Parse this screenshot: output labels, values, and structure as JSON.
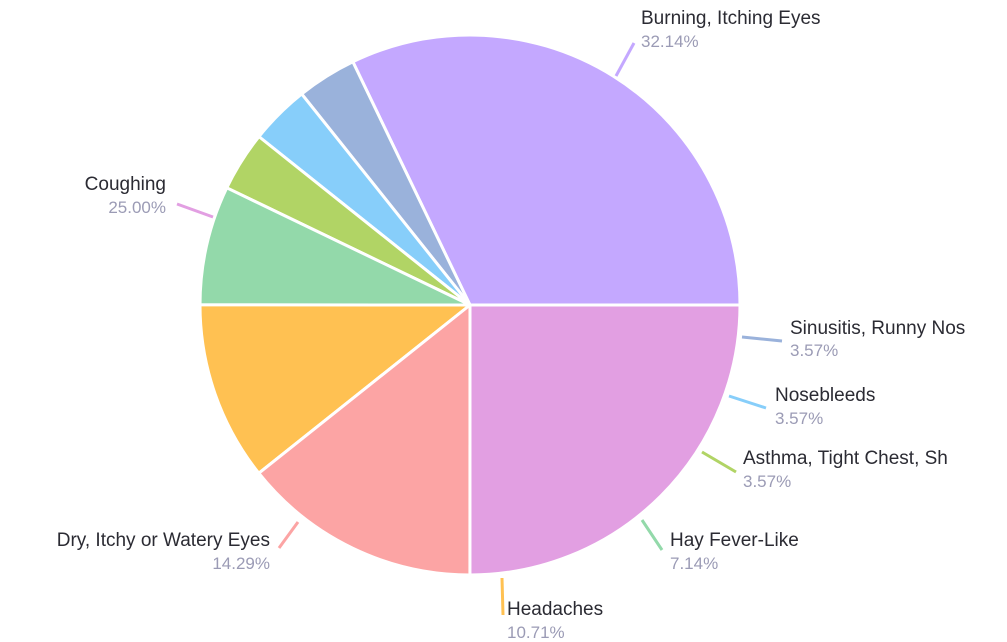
{
  "chart_data": {
    "type": "pie",
    "slices": [
      {
        "label": "Burning, Itching Eyes",
        "pct_label": "32.14%",
        "value": 32.14,
        "color": "#c4a8ff"
      },
      {
        "label": "Sinusitis, Runny Nos",
        "pct_label": "3.57%",
        "value": 3.57,
        "color": "#9ab2db"
      },
      {
        "label": "Nosebleeds",
        "pct_label": "3.57%",
        "value": 3.57,
        "color": "#87cefa"
      },
      {
        "label": "Asthma, Tight Chest, Sh",
        "pct_label": "3.57%",
        "value": 3.57,
        "color": "#b1d465"
      },
      {
        "label": "Hay Fever-Like",
        "pct_label": "7.14%",
        "value": 7.14,
        "color": "#93d9aa"
      },
      {
        "label": "Headaches",
        "pct_label": "10.71%",
        "value": 10.71,
        "color": "#ffc152"
      },
      {
        "label": "Dry, Itchy or Watery Eyes",
        "pct_label": "14.29%",
        "value": 14.29,
        "color": "#fca4a4"
      },
      {
        "label": "Coughing",
        "pct_label": "25.00%",
        "value": 25.0,
        "color": "#e29fe2"
      }
    ]
  }
}
